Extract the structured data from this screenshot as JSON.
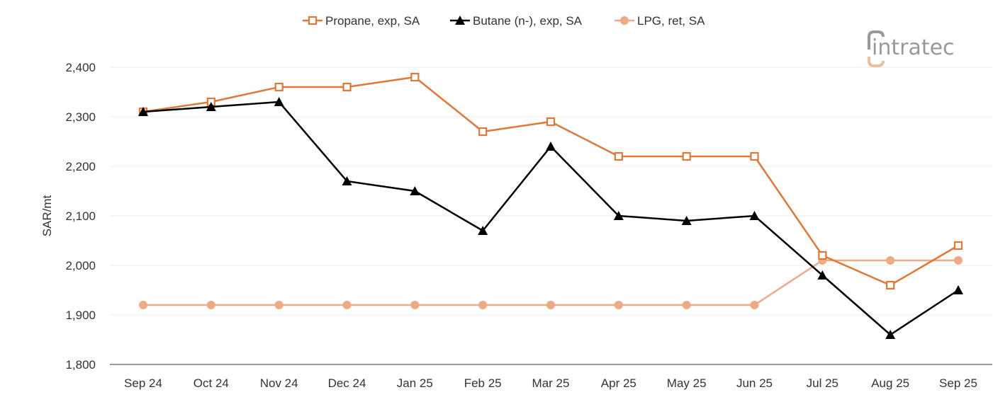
{
  "chart_data": {
    "type": "line",
    "title": "",
    "xlabel": "",
    "ylabel": "SAR/mt",
    "ylim": [
      1800,
      2400
    ],
    "yticks": [
      1800,
      1900,
      2000,
      2100,
      2200,
      2300,
      2400
    ],
    "ytick_labels": [
      "1,800",
      "1,900",
      "2,000",
      "2,100",
      "2,200",
      "2,300",
      "2,400"
    ],
    "grid": "horizontal",
    "legend_position": "top",
    "categories": [
      "Sep 24",
      "Oct 24",
      "Nov 24",
      "Dec 24",
      "Jan 25",
      "Feb 25",
      "Mar 25",
      "Apr 25",
      "May 25",
      "Jun 25",
      "Jul 25",
      "Aug 25",
      "Sep 25"
    ],
    "series": [
      {
        "name": "Propane, exp, SA",
        "color": "#e07838",
        "marker": "open-square",
        "values": [
          2310,
          2330,
          2360,
          2360,
          2380,
          2270,
          2290,
          2220,
          2220,
          2220,
          2020,
          1960,
          2040
        ]
      },
      {
        "name": "Butane (n-), exp, SA",
        "color": "#000000",
        "marker": "triangle",
        "values": [
          2310,
          2320,
          2330,
          2170,
          2150,
          2070,
          2240,
          2100,
          2090,
          2100,
          1980,
          1860,
          1950
        ]
      },
      {
        "name": "LPG, ret, SA",
        "color": "#eeaa84",
        "marker": "circle",
        "values": [
          1920,
          1920,
          1920,
          1920,
          1920,
          1920,
          1920,
          1920,
          1920,
          1920,
          2010,
          2010,
          2010
        ]
      }
    ]
  },
  "logo": {
    "text": "intratec"
  }
}
